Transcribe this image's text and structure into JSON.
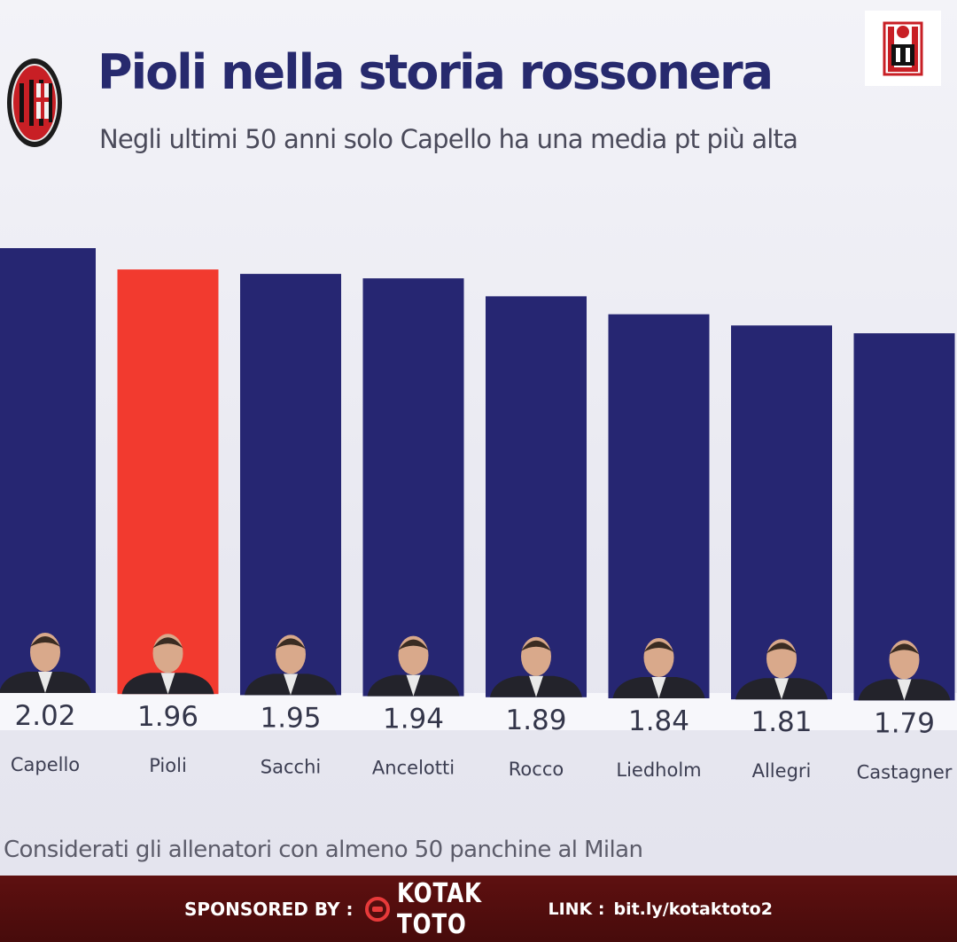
{
  "header": {
    "title": "Pioli nella storia rossonera",
    "subtitle": "Negli ultimi 50 anni solo Capello ha una media pt più alta",
    "crest_icon": "milan-crest-icon",
    "corner_logo_icon": "milan-fan-page-logo-icon"
  },
  "chart_data": {
    "type": "bar",
    "categories": [
      "Capello",
      "Pioli",
      "Sacchi",
      "Ancelotti",
      "Rocco",
      "Liedholm",
      "Allegri",
      "Castagner"
    ],
    "values": [
      2.02,
      1.96,
      1.95,
      1.94,
      1.89,
      1.84,
      1.81,
      1.79
    ],
    "value_labels": [
      "2.02",
      "1.96",
      "1.95",
      "1.94",
      "1.89",
      "1.84",
      "1.81",
      "1.79"
    ],
    "highlight": "Pioli",
    "colors": {
      "default": "#262672",
      "highlight": "#f23a2f"
    },
    "ylim": [
      0,
      2.02
    ],
    "grid": false,
    "legend": "none",
    "bar_images": "coach-portrait"
  },
  "footnote": "Considerati gli allenatori con almeno 50 panchine al Milan",
  "sponsor": {
    "label": "SPONSORED BY :",
    "brand": "KOTAK TOTO",
    "link_label": "LINK :",
    "link": "bit.ly/kotaktoto2",
    "icon": "kotak-toto-icon"
  }
}
